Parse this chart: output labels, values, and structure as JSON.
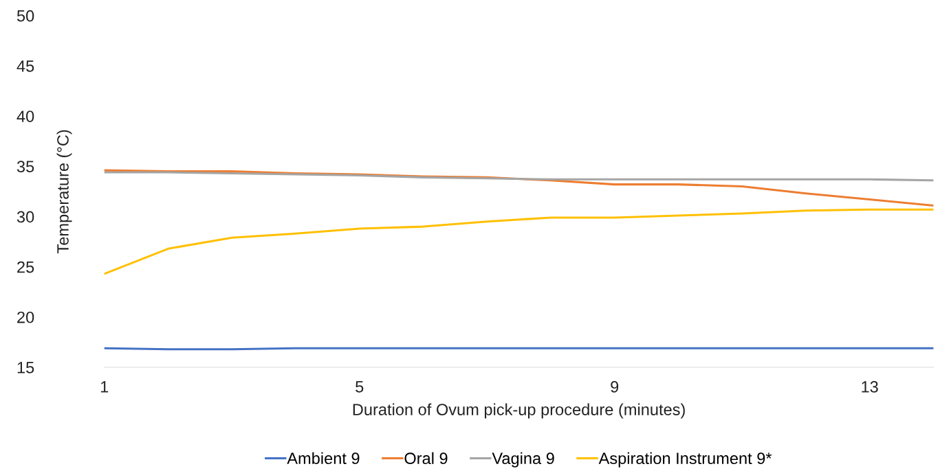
{
  "chart_data": {
    "type": "line",
    "xlabel": "Duration of Ovum pick-up procedure (minutes)",
    "ylabel": "Temperature (°C)",
    "x": [
      1,
      2,
      3,
      4,
      5,
      6,
      7,
      8,
      9,
      10,
      11,
      12,
      13,
      14
    ],
    "xlim": [
      1,
      14
    ],
    "xticks": [
      1,
      5,
      9,
      13
    ],
    "ylim": [
      15,
      50
    ],
    "yticks": [
      15,
      20,
      25,
      30,
      35,
      40,
      45,
      50
    ],
    "grid": false,
    "legend": "bottom",
    "marker": "none",
    "line_style": "solid",
    "series": [
      {
        "name": "Ambient 9",
        "color": "#4472c4",
        "values": [
          16.9,
          16.8,
          16.8,
          16.9,
          16.9,
          16.9,
          16.9,
          16.9,
          16.9,
          16.9,
          16.9,
          16.9,
          16.9,
          16.9
        ]
      },
      {
        "name": "Oral 9",
        "color": "#ed7d31",
        "values": [
          34.6,
          34.5,
          34.5,
          34.3,
          34.2,
          34.0,
          33.9,
          33.6,
          33.2,
          33.2,
          33.0,
          32.3,
          31.7,
          31.1
        ]
      },
      {
        "name": "Vagina 9",
        "color": "#a5a5a5",
        "values": [
          34.4,
          34.4,
          34.3,
          34.2,
          34.1,
          33.9,
          33.8,
          33.7,
          33.7,
          33.7,
          33.7,
          33.7,
          33.7,
          33.6
        ]
      },
      {
        "name": "Aspiration Instrument 9*",
        "color": "#ffc000",
        "values": [
          24.3,
          26.8,
          27.9,
          28.3,
          28.8,
          29.0,
          29.5,
          29.9,
          29.9,
          30.1,
          30.3,
          30.6,
          30.7,
          30.7
        ]
      }
    ]
  }
}
